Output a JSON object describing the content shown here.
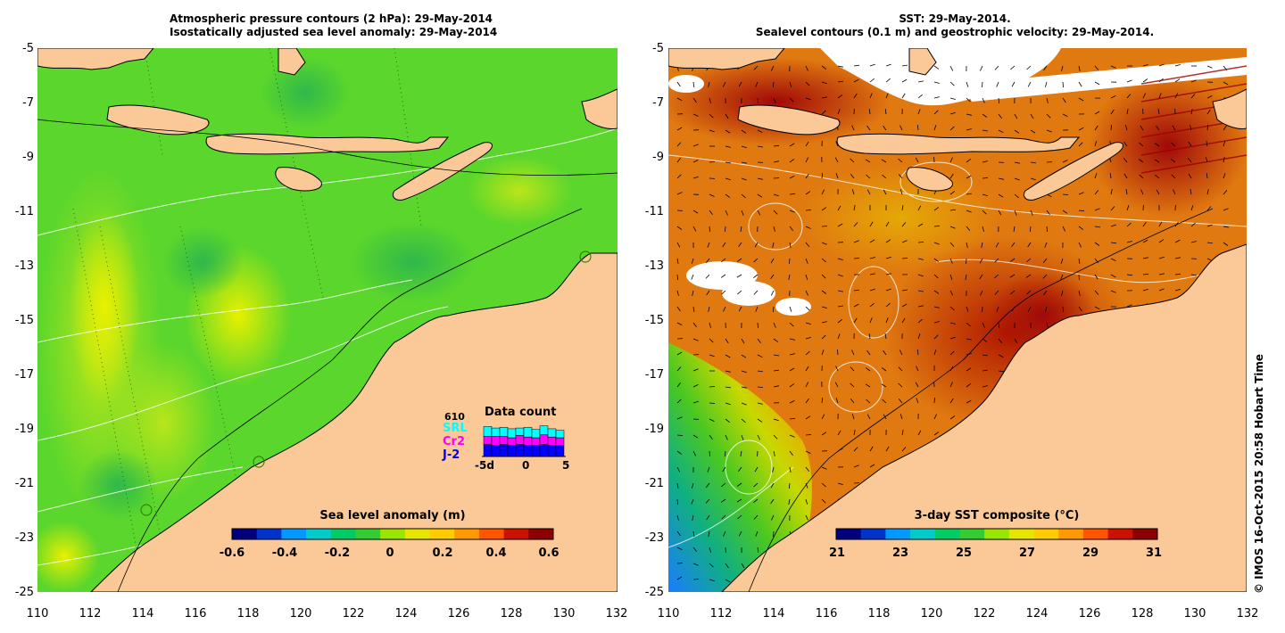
{
  "left_panel": {
    "title_line1": "Atmospheric pressure contours (2 hPa): 29-May-2014",
    "title_line2": "Isostatically adjusted sea level anomaly: 29-May-2014",
    "colorbar": {
      "title": "Sea level anomaly (m)",
      "ticks": [
        "-0.6",
        "-0.4",
        "-0.2",
        "0",
        "0.2",
        "0.4",
        "0.6"
      ],
      "colors": [
        "#00007f",
        "#0033cc",
        "#0099ff",
        "#00cccc",
        "#00cc66",
        "#33cc33",
        "#99e600",
        "#e6e600",
        "#ffcc00",
        "#ff9900",
        "#ff5500",
        "#cc1100",
        "#8b0000"
      ]
    },
    "data_count": {
      "title": "Data count",
      "top_value": "610",
      "satellites": [
        {
          "name": "SRL",
          "color": "#00ffff"
        },
        {
          "name": "Cr2",
          "color": "#ff00ff"
        },
        {
          "name": "J-2",
          "color": "#0000ff"
        }
      ],
      "axis_labels": [
        "-5d",
        "0",
        "5"
      ],
      "bars": [
        {
          "j2": 0.32,
          "cr2": 0.22,
          "srl": 0.26
        },
        {
          "j2": 0.3,
          "cr2": 0.24,
          "srl": 0.22
        },
        {
          "j2": 0.32,
          "cr2": 0.22,
          "srl": 0.24
        },
        {
          "j2": 0.3,
          "cr2": 0.2,
          "srl": 0.24
        },
        {
          "j2": 0.32,
          "cr2": 0.24,
          "srl": 0.2
        },
        {
          "j2": 0.3,
          "cr2": 0.22,
          "srl": 0.26
        },
        {
          "j2": 0.3,
          "cr2": 0.2,
          "srl": 0.22
        },
        {
          "j2": 0.32,
          "cr2": 0.26,
          "srl": 0.24
        },
        {
          "j2": 0.3,
          "cr2": 0.22,
          "srl": 0.22
        },
        {
          "j2": 0.3,
          "cr2": 0.2,
          "srl": 0.2
        }
      ]
    }
  },
  "right_panel": {
    "title_line1": "SST: 29-May-2014.",
    "title_line2": "Sealevel contours (0.1 m) and geostrophic velocity: 29-May-2014.",
    "colorbar": {
      "title": "3-day SST composite (°C)",
      "ticks": [
        "21",
        "23",
        "25",
        "27",
        "29",
        "31"
      ],
      "colors": [
        "#00007f",
        "#0033cc",
        "#0099ff",
        "#00cccc",
        "#00cc66",
        "#33cc33",
        "#99e600",
        "#e6e600",
        "#ffcc00",
        "#ff9900",
        "#ff5500",
        "#cc1100",
        "#8b0000"
      ]
    }
  },
  "axes": {
    "x_ticks": [
      "110",
      "112",
      "114",
      "116",
      "118",
      "120",
      "122",
      "124",
      "126",
      "128",
      "130",
      "132"
    ],
    "y_ticks": [
      "-5",
      "-7",
      "-9",
      "-11",
      "-13",
      "-15",
      "-17",
      "-19",
      "-21",
      "-23",
      "-25"
    ]
  },
  "credit": "© IMOS 16-Oct-2015 20:58 Hobart Time",
  "colors": {
    "land": "#fbc997",
    "sla_background": "#5ad62c",
    "sst_background": "#e07a10"
  }
}
